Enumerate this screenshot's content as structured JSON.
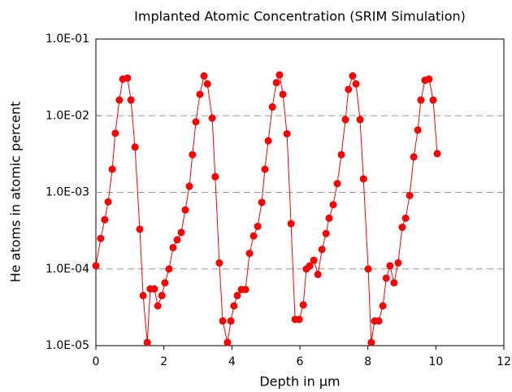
{
  "chart_data": {
    "type": "line",
    "title": "Implanted Atomic Concentration (SRIM Simulation)",
    "xlabel": "Depth in µm",
    "ylabel": "He atoms in atomic percent",
    "color": "#ff0000",
    "ylog": true,
    "grid": true,
    "xlim": [
      0,
      12
    ],
    "xticks": [
      0,
      2,
      4,
      6,
      8,
      10,
      12
    ],
    "ylim": [
      1e-05,
      0.1
    ],
    "yticks": [
      {
        "value": 1e-05,
        "label": "1.0E-05"
      },
      {
        "value": 0.0001,
        "label": "1.0E-04"
      },
      {
        "value": 0.001,
        "label": "1.0E-03"
      },
      {
        "value": 0.01,
        "label": "1.0E-02"
      },
      {
        "value": 0.1,
        "label": "1.0E-01"
      }
    ],
    "x": [
      0,
      0.14,
      0.26,
      0.36,
      0.48,
      0.57,
      0.69,
      0.79,
      0.93,
      1.03,
      1.15,
      1.29,
      1.39,
      1.51,
      1.6,
      1.72,
      1.82,
      1.94,
      2.03,
      2.15,
      2.27,
      2.39,
      2.51,
      2.63,
      2.75,
      2.84,
      2.94,
      3.06,
      3.18,
      3.28,
      3.42,
      3.51,
      3.63,
      3.73,
      3.87,
      3.97,
      4.06,
      4.16,
      4.28,
      4.4,
      4.52,
      4.64,
      4.76,
      4.88,
      4.97,
      5.07,
      5.19,
      5.31,
      5.4,
      5.5,
      5.62,
      5.74,
      5.86,
      5.98,
      6.1,
      6.19,
      6.29,
      6.41,
      6.53,
      6.65,
      6.77,
      6.86,
      6.98,
      7.1,
      7.22,
      7.34,
      7.43,
      7.55,
      7.65,
      7.77,
      7.87,
      8.01,
      8.1,
      8.2,
      8.32,
      8.44,
      8.54,
      8.65,
      8.77,
      8.89,
      9.01,
      9.11,
      9.23,
      9.35,
      9.47,
      9.56,
      9.68,
      9.8,
      9.92,
      10.04
    ],
    "values": [
      0.00011,
      0.00025,
      0.00044,
      0.00075,
      0.002,
      0.0059,
      0.016,
      0.03,
      0.031,
      0.016,
      0.0039,
      0.00033,
      4.5e-05,
      1.1e-05,
      5.5e-05,
      5.5e-05,
      3.3e-05,
      4.5e-05,
      6.6e-05,
      0.0001,
      0.00019,
      0.00024,
      0.0003,
      0.00059,
      0.0012,
      0.0031,
      0.0083,
      0.019,
      0.033,
      0.026,
      0.0093,
      0.0016,
      0.00012,
      2.1e-05,
      1.1e-05,
      2.1e-05,
      3.3e-05,
      4.5e-05,
      5.4e-05,
      5.4e-05,
      0.00016,
      0.00027,
      0.00036,
      0.00074,
      0.002,
      0.0047,
      0.013,
      0.027,
      0.034,
      0.019,
      0.0058,
      0.00039,
      2.2e-05,
      2.2e-05,
      3.4e-05,
      0.0001,
      0.00011,
      0.00013,
      8.5e-05,
      0.00018,
      0.00029,
      0.00046,
      0.00069,
      0.0013,
      0.0031,
      0.0089,
      0.022,
      0.033,
      0.026,
      0.0089,
      0.0015,
      0.0001,
      1.1e-05,
      2.1e-05,
      2.1e-05,
      3.3e-05,
      7.6e-05,
      0.00011,
      6.6e-05,
      0.00012,
      0.00035,
      0.00046,
      0.00091,
      0.0029,
      0.0065,
      0.016,
      0.029,
      0.03,
      0.016,
      0.0032
    ]
  }
}
